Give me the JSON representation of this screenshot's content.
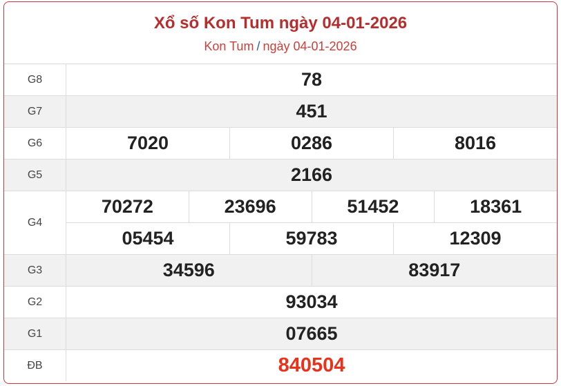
{
  "header": {
    "title": "Xổ số Kon Tum ngày 04-01-2026",
    "breadcrumb": {
      "province": "Kon Tum",
      "separator": "/",
      "date": "ngày 04-01-2026"
    }
  },
  "prizes": [
    {
      "label": "G8",
      "lines": [
        [
          "78"
        ]
      ]
    },
    {
      "label": "G7",
      "lines": [
        [
          "451"
        ]
      ]
    },
    {
      "label": "G6",
      "lines": [
        [
          "7020",
          "0286",
          "8016"
        ]
      ]
    },
    {
      "label": "G5",
      "lines": [
        [
          "2166"
        ]
      ]
    },
    {
      "label": "G4",
      "lines": [
        [
          "70272",
          "23696",
          "51452",
          "18361"
        ],
        [
          "05454",
          "59783",
          "12309"
        ]
      ]
    },
    {
      "label": "G3",
      "lines": [
        [
          "34596",
          "83917"
        ]
      ]
    },
    {
      "label": "G2",
      "lines": [
        [
          "93034"
        ]
      ]
    },
    {
      "label": "G1",
      "lines": [
        [
          "07665"
        ]
      ]
    },
    {
      "label": "ĐB",
      "lines": [
        [
          "840504"
        ]
      ]
    }
  ],
  "colors": {
    "title": "#b52d2d",
    "border": "#d0343a",
    "special": "#e8321c"
  }
}
